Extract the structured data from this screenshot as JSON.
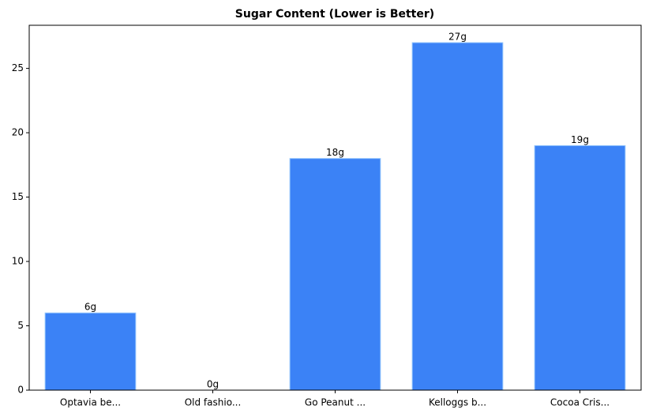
{
  "chart_data": {
    "type": "bar",
    "title": "Sugar Content (Lower is Better)",
    "categories": [
      "Optavia be...",
      "Old fashio...",
      "Go Peanut ...",
      "Kelloggs b...",
      "Cocoa Cris..."
    ],
    "values": [
      6,
      0,
      18,
      27,
      19
    ],
    "value_labels": [
      "6g",
      "0g",
      "18g",
      "27g",
      "19g"
    ],
    "color": "#3b82f6",
    "ylim": [
      0,
      28.35
    ],
    "yticks": [
      0,
      5,
      10,
      15,
      20,
      25
    ],
    "grid": false
  }
}
